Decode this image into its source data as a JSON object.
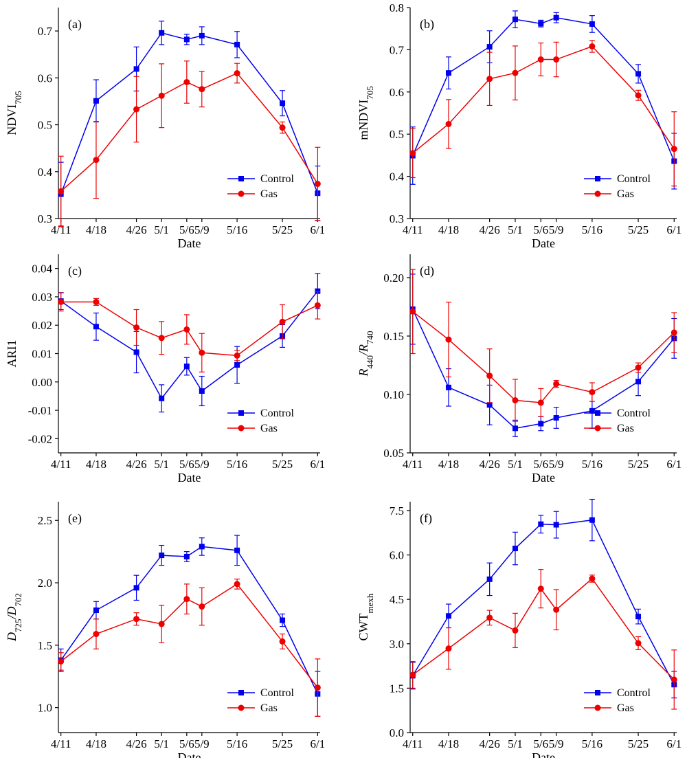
{
  "chart_data": [
    {
      "type": "line",
      "panel_label": "(a)",
      "xlabel": "Date",
      "ylabel_main": "NDVI",
      "ylabel_sub": "705",
      "ylabel_italic": false,
      "x": [
        "4/11",
        "4/18",
        "4/26",
        "5/1",
        "5/6",
        "5/9",
        "5/16",
        "5/25",
        "6/1"
      ],
      "ylim": [
        0.3,
        0.75
      ],
      "yticks": [
        0.3,
        0.4,
        0.5,
        0.6,
        0.7
      ],
      "ytick_labels": [
        "0.3",
        "0.4",
        "0.5",
        "0.6",
        "0.7"
      ],
      "legend_position": "lower-right",
      "series": [
        {
          "name": "Control",
          "color": "#0000ee",
          "marker": "square",
          "values": [
            0.352,
            0.551,
            0.619,
            0.696,
            0.682,
            0.69,
            0.671,
            0.546,
            0.354
          ],
          "errors": [
            0.068,
            0.045,
            0.047,
            0.025,
            0.011,
            0.019,
            0.028,
            0.027,
            0.058
          ]
        },
        {
          "name": "Gas",
          "color": "#ee0000",
          "marker": "circle",
          "values": [
            0.358,
            0.425,
            0.533,
            0.562,
            0.591,
            0.576,
            0.61,
            0.494,
            0.374
          ],
          "errors": [
            0.075,
            0.082,
            0.07,
            0.068,
            0.045,
            0.038,
            0.021,
            0.012,
            0.078
          ]
        }
      ]
    },
    {
      "type": "line",
      "panel_label": "(b)",
      "xlabel": "Date",
      "ylabel_main": "mNDVI",
      "ylabel_sub": "705",
      "ylabel_italic": false,
      "x": [
        "4/11",
        "4/18",
        "4/26",
        "5/1",
        "5/6",
        "5/9",
        "5/16",
        "5/25",
        "6/1"
      ],
      "ylim": [
        0.3,
        0.8
      ],
      "yticks": [
        0.3,
        0.4,
        0.5,
        0.6,
        0.7,
        0.8
      ],
      "ytick_labels": [
        "0.3",
        "0.4",
        "0.5",
        "0.6",
        "0.7",
        "0.8"
      ],
      "legend_position": "lower-right",
      "series": [
        {
          "name": "Control",
          "color": "#0000ee",
          "marker": "square",
          "values": [
            0.449,
            0.645,
            0.707,
            0.772,
            0.762,
            0.776,
            0.761,
            0.643,
            0.436
          ],
          "errors": [
            0.068,
            0.038,
            0.038,
            0.02,
            0.008,
            0.012,
            0.02,
            0.022,
            0.066
          ]
        },
        {
          "name": "Gas",
          "color": "#ee0000",
          "marker": "circle",
          "values": [
            0.455,
            0.524,
            0.631,
            0.645,
            0.677,
            0.677,
            0.708,
            0.592,
            0.465
          ],
          "errors": [
            0.058,
            0.058,
            0.063,
            0.064,
            0.039,
            0.041,
            0.014,
            0.012,
            0.088
          ]
        }
      ]
    },
    {
      "type": "line",
      "panel_label": "(c)",
      "xlabel": "Date",
      "ylabel_main": "ARI1",
      "ylabel_sub": "",
      "ylabel_italic": false,
      "x": [
        "4/11",
        "4/18",
        "4/26",
        "5/1",
        "5/6",
        "5/9",
        "5/16",
        "5/25",
        "6/1"
      ],
      "ylim": [
        -0.025,
        0.045
      ],
      "yticks": [
        -0.02,
        -0.01,
        0.0,
        0.01,
        0.02,
        0.03,
        0.04
      ],
      "ytick_labels": [
        "-0.02",
        "-0.01",
        "0.00",
        "0.01",
        "0.02",
        "0.03",
        "0.04"
      ],
      "legend_position": "lower-right",
      "series": [
        {
          "name": "Control",
          "color": "#0000ee",
          "marker": "square",
          "values": [
            0.0285,
            0.0195,
            0.0105,
            -0.0058,
            0.0055,
            -0.0032,
            0.006,
            0.0162,
            0.032
          ],
          "errors": [
            0.003,
            0.0048,
            0.0073,
            0.0048,
            0.0031,
            0.0052,
            0.0065,
            0.004,
            0.0062
          ]
        },
        {
          "name": "Gas",
          "color": "#ee0000",
          "marker": "circle",
          "values": [
            0.0282,
            0.0282,
            0.0192,
            0.0155,
            0.0185,
            0.0103,
            0.0093,
            0.0212,
            0.027
          ],
          "errors": [
            0.0032,
            0.0012,
            0.0063,
            0.0058,
            0.0052,
            0.0068,
            0.0018,
            0.006,
            0.0048
          ]
        }
      ]
    },
    {
      "type": "line",
      "panel_label": "(d)",
      "xlabel": "Date",
      "ylabel_main": "R",
      "ylabel_sub": "440",
      "ylabel_main2": "/R",
      "ylabel_sub2": "740",
      "ylabel_italic": true,
      "x": [
        "4/11",
        "4/18",
        "4/26",
        "5/1",
        "5/6",
        "5/9",
        "5/16",
        "5/25",
        "6/1"
      ],
      "ylim": [
        0.05,
        0.22
      ],
      "yticks": [
        0.05,
        0.1,
        0.15,
        0.2
      ],
      "ytick_labels": [
        "0.05",
        "0.10",
        "0.15",
        "0.20"
      ],
      "legend_position": "lower-right",
      "series": [
        {
          "name": "Control",
          "color": "#0000ee",
          "marker": "square",
          "values": [
            0.173,
            0.106,
            0.091,
            0.071,
            0.075,
            0.08,
            0.086,
            0.111,
            0.148
          ],
          "errors": [
            0.03,
            0.016,
            0.017,
            0.007,
            0.006,
            0.009,
            0.015,
            0.012,
            0.017
          ]
        },
        {
          "name": "Gas",
          "color": "#ee0000",
          "marker": "circle",
          "values": [
            0.171,
            0.147,
            0.116,
            0.095,
            0.093,
            0.109,
            0.102,
            0.123,
            0.153
          ],
          "errors": [
            0.036,
            0.032,
            0.023,
            0.018,
            0.012,
            0.003,
            0.008,
            0.004,
            0.017
          ]
        }
      ]
    },
    {
      "type": "line",
      "panel_label": "(e)",
      "xlabel": "Date",
      "ylabel_main": "D",
      "ylabel_sub": "725",
      "ylabel_main2": "/D",
      "ylabel_sub2": "702",
      "ylabel_italic": true,
      "x": [
        "4/11",
        "4/18",
        "4/26",
        "5/1",
        "5/6",
        "5/9",
        "5/16",
        "5/25",
        "6/1"
      ],
      "ylim": [
        0.8,
        2.65
      ],
      "yticks": [
        1.0,
        1.5,
        2.0,
        2.5
      ],
      "ytick_labels": [
        "1.0",
        "1.5",
        "2.0",
        "2.5"
      ],
      "legend_position": "lower-right",
      "series": [
        {
          "name": "Control",
          "color": "#0000ee",
          "marker": "square",
          "values": [
            1.38,
            1.78,
            1.96,
            2.22,
            2.21,
            2.29,
            2.26,
            1.7,
            1.11
          ],
          "errors": [
            0.09,
            0.07,
            0.1,
            0.08,
            0.04,
            0.07,
            0.12,
            0.05,
            0.18
          ]
        },
        {
          "name": "Gas",
          "color": "#ee0000",
          "marker": "circle",
          "values": [
            1.37,
            1.59,
            1.71,
            1.67,
            1.87,
            1.81,
            1.99,
            1.53,
            1.16
          ],
          "errors": [
            0.07,
            0.12,
            0.05,
            0.15,
            0.12,
            0.15,
            0.04,
            0.06,
            0.23
          ]
        }
      ]
    },
    {
      "type": "line",
      "panel_label": "(f)",
      "xlabel": "Date",
      "ylabel_main": "CWT",
      "ylabel_sub": "mexh",
      "ylabel_italic": false,
      "x": [
        "4/11",
        "4/18",
        "4/26",
        "5/1",
        "5/6",
        "5/9",
        "5/16",
        "5/25",
        "6/1"
      ],
      "ylim": [
        0.0,
        7.8
      ],
      "yticks": [
        0.0,
        1.5,
        3.0,
        4.5,
        6.0,
        7.5
      ],
      "ytick_labels": [
        "0.0",
        "1.5",
        "3.0",
        "4.5",
        "6.0",
        "7.5"
      ],
      "legend_position": "lower-right",
      "series": [
        {
          "name": "Control",
          "color": "#0000ee",
          "marker": "square",
          "values": [
            1.92,
            3.94,
            5.18,
            6.22,
            7.04,
            7.02,
            7.18,
            3.92,
            1.62
          ],
          "errors": [
            0.45,
            0.4,
            0.55,
            0.55,
            0.3,
            0.45,
            0.7,
            0.25,
            0.45
          ]
        },
        {
          "name": "Gas",
          "color": "#ee0000",
          "marker": "circle",
          "values": [
            1.95,
            2.84,
            3.88,
            3.45,
            4.86,
            4.15,
            5.2,
            3.02,
            1.79
          ],
          "errors": [
            0.45,
            0.7,
            0.25,
            0.58,
            0.65,
            0.68,
            0.12,
            0.22,
            1.0
          ]
        }
      ]
    }
  ]
}
